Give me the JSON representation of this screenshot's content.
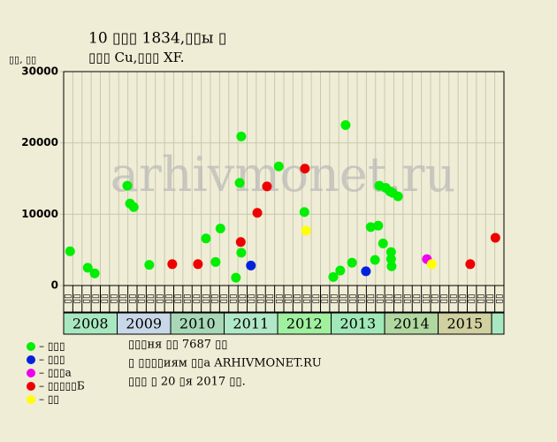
{
  "chart_data": {
    "type": "scatter",
    "title_lines": [
      "10 ▯▯▯ 1834,▯▯ы ▯",
      "▯▯▯ Cu,▯▯▯ XF."
    ],
    "ylabel": "▯▯, ▯▯",
    "watermark": "arhivmonet.ru",
    "xlim": [
      2008,
      2016.23
    ],
    "ylim": [
      0,
      30000
    ],
    "yticks": [
      0,
      10000,
      20000,
      30000
    ],
    "grid": true,
    "years": [
      "2008",
      "2009",
      "2010",
      "2011",
      "2012",
      "2013",
      "2014",
      "2015"
    ],
    "year_colors": [
      "#a8e8c0",
      "#c8d8e8",
      "#a8d8b8",
      "#b0e8c8",
      "#a0f0a0",
      "#a0e8b8",
      "#b0d8a0",
      "#d0d0a0"
    ],
    "column_labels": [
      "▯▯",
      "▯▯",
      "▯▯",
      "▯▯",
      "▯▯",
      "▯▯",
      "▯▯",
      "▯▯",
      "▯▯",
      "▯▯",
      "▯▯",
      "▯▯",
      "▯▯",
      "▯▯",
      "▯▯",
      "▯▯",
      "▯▯",
      "▯▯",
      "▯▯",
      "▯▯",
      "▯▯",
      "▯▯",
      "▯▯",
      "▯▯",
      "▯▯",
      "▯▯",
      "▯▯",
      "▯▯",
      "▯▯",
      "▯▯",
      "▯▯",
      "▯▯",
      "▯▯",
      "▯▯",
      "▯▯",
      "▯▯",
      "▯▯",
      "▯▯",
      "▯▯",
      "▯▯",
      "▯▯",
      "▯▯",
      "▯▯",
      "▯▯",
      "▯▯",
      "▯▯",
      "▯▯",
      "▯▯"
    ],
    "series": [
      {
        "name": "– ▯▯▯",
        "color": "#00ee00",
        "x": [
          2008.12,
          2008.45,
          2008.58,
          2009.19,
          2009.24,
          2009.31,
          2009.6,
          2010.66,
          2010.84,
          2010.93,
          2011.22,
          2011.32,
          2011.29,
          2011.32,
          2012.02,
          2012.5,
          2013.04,
          2013.17,
          2013.27,
          2013.39,
          2013.74,
          2013.82,
          2013.88,
          2013.9,
          2013.97,
          2014.02,
          2014.1,
          2014.15,
          2014.25,
          2014.12,
          2014.12,
          2014.13
        ],
        "values": [
          4800,
          2500,
          1700,
          14000,
          11500,
          11000,
          2900,
          6600,
          3300,
          8000,
          1100,
          20900,
          14400,
          4600,
          16700,
          10300,
          1200,
          2100,
          22500,
          3200,
          8200,
          3600,
          8400,
          14000,
          5900,
          13700,
          13200,
          13000,
          12500,
          4700,
          3700,
          2700
        ]
      },
      {
        "name": "– ▯▯▯",
        "color": "#0022dd",
        "x": [
          2011.5,
          2013.65
        ],
        "values": [
          2800,
          2000
        ]
      },
      {
        "name": "– ▯▯▯а",
        "color": "#ee00ee",
        "x": [
          2014.79
        ],
        "values": [
          3700
        ]
      },
      {
        "name": "– ▯▯▯▯▯Б",
        "color": "#ee0000",
        "x": [
          2010.03,
          2010.51,
          2011.31,
          2011.62,
          2011.8,
          2012.51,
          2015.6,
          2016.07
        ],
        "values": [
          3000,
          3000,
          6100,
          10200,
          13900,
          16400,
          3000,
          6700
        ]
      },
      {
        "name": "– ▯▯",
        "color": "#ffff00",
        "x": [
          2012.53,
          2014.88
        ],
        "values": [
          7700,
          3000
        ]
      }
    ],
    "notes": [
      "▯▯▯ня ▯▯ 7687 ▯▯",
      "▯ ▯▯▯▯иям ▯▯а ARHIVMONET.RU",
      "▯▯▯ ▯ 20 ▯я 2017 ▯▯."
    ]
  }
}
